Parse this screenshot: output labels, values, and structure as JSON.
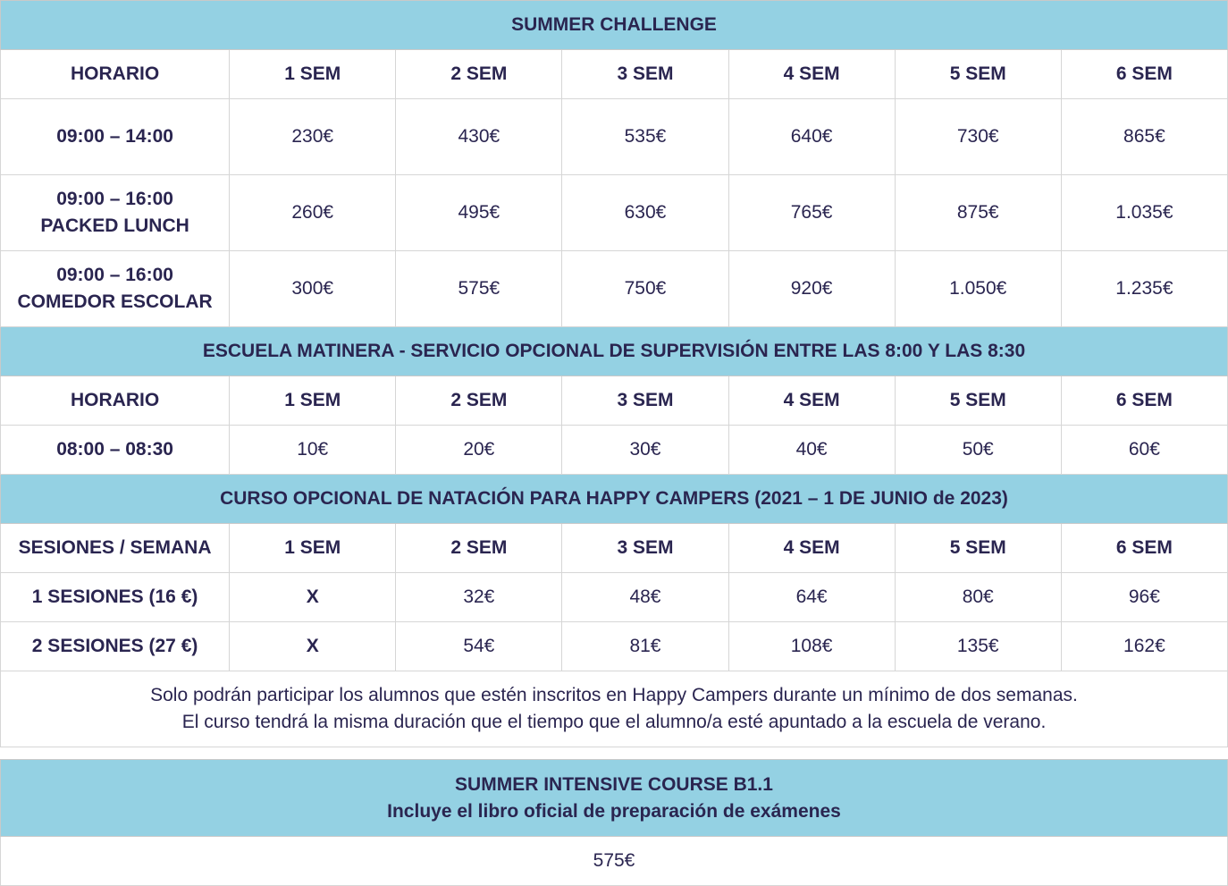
{
  "colors": {
    "header_bg": "#94d1e3",
    "text": "#2a2550",
    "border": "#d6d6d6"
  },
  "summer_challenge": {
    "title": "SUMMER CHALLENGE",
    "headers": [
      "HORARIO",
      "1 SEM",
      "2 SEM",
      "3 SEM",
      "4 SEM",
      "5 SEM",
      "6 SEM"
    ],
    "rows": [
      {
        "label": [
          "09:00 – 14:00"
        ],
        "prices": [
          "230€",
          "430€",
          "535€",
          "640€",
          "730€",
          "865€"
        ]
      },
      {
        "label": [
          "09:00 – 16:00",
          "PACKED LUNCH"
        ],
        "prices": [
          "260€",
          "495€",
          "630€",
          "765€",
          "875€",
          "1.035€"
        ]
      },
      {
        "label": [
          "09:00 – 16:00",
          "COMEDOR ESCOLAR"
        ],
        "prices": [
          "300€",
          "575€",
          "750€",
          "920€",
          "1.050€",
          "1.235€"
        ]
      }
    ]
  },
  "escuela_matinera": {
    "title": "ESCUELA MATINERA - SERVICIO OPCIONAL DE SUPERVISIÓN ENTRE LAS 8:00 Y LAS 8:30",
    "headers": [
      "HORARIO",
      "1 SEM",
      "2 SEM",
      "3 SEM",
      "4 SEM",
      "5 SEM",
      "6 SEM"
    ],
    "rows": [
      {
        "label": [
          "08:00 – 08:30"
        ],
        "prices": [
          "10€",
          "20€",
          "30€",
          "40€",
          "50€",
          "60€"
        ]
      }
    ]
  },
  "natacion": {
    "title": "CURSO OPCIONAL DE NATACIÓN PARA HAPPY CAMPERS (2021 – 1 DE JUNIO de 2023)",
    "headers": [
      "SESIONES / SEMANA",
      "1 SEM",
      "2 SEM",
      "3 SEM",
      "4 SEM",
      "5 SEM",
      "6 SEM"
    ],
    "rows": [
      {
        "label": [
          "1 SESIONES (16 €)"
        ],
        "prices": [
          "X",
          "32€",
          "48€",
          "64€",
          "80€",
          "96€"
        ]
      },
      {
        "label": [
          "2 SESIONES (27 €)"
        ],
        "prices": [
          "X",
          "54€",
          "81€",
          "108€",
          "135€",
          "162€"
        ]
      }
    ],
    "note": [
      "Solo podrán participar los alumnos que estén inscritos en Happy Campers durante un mínimo de dos semanas.",
      "El curso tendrá la misma duración que el tiempo que el alumno/a esté apuntado a la escuela de verano."
    ]
  },
  "intensive": {
    "title": [
      "SUMMER INTENSIVE COURSE B1.1",
      "Incluye el libro oficial de preparación de exámenes"
    ],
    "price": "575€"
  }
}
